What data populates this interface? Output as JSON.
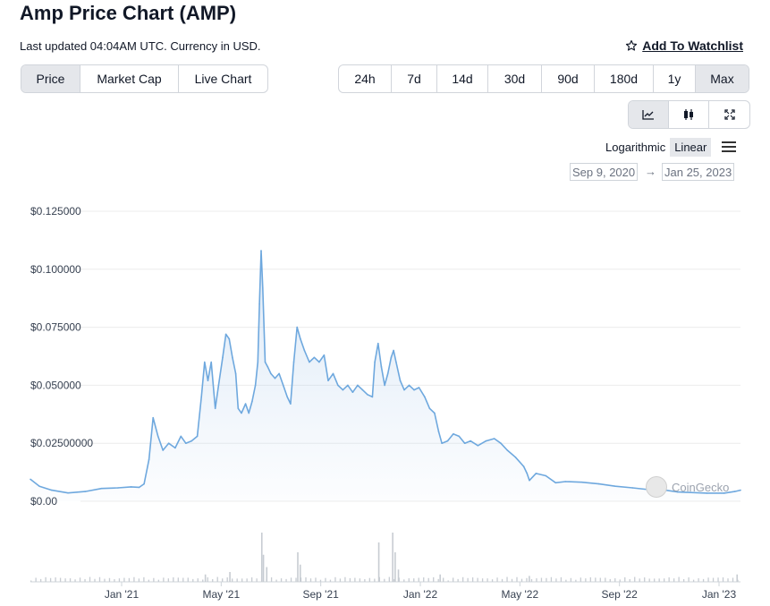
{
  "header": {
    "title": "Amp Price Chart (AMP)",
    "updated": "Last updated 04:04AM UTC. Currency in USD.",
    "watchlist_label": "Add To Watchlist"
  },
  "chart_tabs": [
    "Price",
    "Market Cap",
    "Live Chart"
  ],
  "time_ranges": [
    "24h",
    "7d",
    "14d",
    "30d",
    "90d",
    "180d",
    "1y",
    "Max"
  ],
  "tools": [
    "line-chart-icon",
    "candlestick-icon",
    "fullscreen-icon"
  ],
  "scale": {
    "log_label": "Logarithmic",
    "linear_label": "Linear"
  },
  "date_range": {
    "from": "Sep 9, 2020",
    "to": "Jan 25, 2023"
  },
  "watermark": "CoinGecko",
  "colors": {
    "line": "#6ea8de",
    "volume": "#c7ccd2",
    "grid": "#ececec"
  },
  "chart_data": {
    "type": "area",
    "title": "",
    "y_tick_labels": [
      "$0.00",
      "$0.02500000",
      "$0.050000",
      "$0.075000",
      "$0.100000",
      "$0.125000"
    ],
    "x_tick_labels": [
      "Jan '21",
      "May '21",
      "Sep '21",
      "Jan '22",
      "May '22",
      "Sep '22",
      "Jan '23"
    ],
    "ylim": [
      0,
      0.125
    ],
    "grid": true,
    "series": [
      {
        "values": [
          [
            "2020-09-09",
            0.0095
          ],
          [
            "2020-09-20",
            0.0065
          ],
          [
            "2020-10-05",
            0.0048
          ],
          [
            "2020-10-25",
            0.0036
          ],
          [
            "2020-11-15",
            0.0042
          ],
          [
            "2020-12-05",
            0.0055
          ],
          [
            "2020-12-25",
            0.0058
          ],
          [
            "2021-01-10",
            0.0062
          ],
          [
            "2021-01-20",
            0.006
          ],
          [
            "2021-01-26",
            0.0075
          ],
          [
            "2021-02-01",
            0.018
          ],
          [
            "2021-02-06",
            0.036
          ],
          [
            "2021-02-12",
            0.028
          ],
          [
            "2021-02-18",
            0.022
          ],
          [
            "2021-02-25",
            0.025
          ],
          [
            "2021-03-05",
            0.023
          ],
          [
            "2021-03-12",
            0.028
          ],
          [
            "2021-03-18",
            0.025
          ],
          [
            "2021-03-25",
            0.026
          ],
          [
            "2021-04-01",
            0.028
          ],
          [
            "2021-04-06",
            0.045
          ],
          [
            "2021-04-10",
            0.06
          ],
          [
            "2021-04-14",
            0.052
          ],
          [
            "2021-04-18",
            0.06
          ],
          [
            "2021-04-23",
            0.04
          ],
          [
            "2021-04-27",
            0.05
          ],
          [
            "2021-05-02",
            0.062
          ],
          [
            "2021-05-06",
            0.072
          ],
          [
            "2021-05-10",
            0.07
          ],
          [
            "2021-05-14",
            0.062
          ],
          [
            "2021-05-18",
            0.055
          ],
          [
            "2021-05-21",
            0.04
          ],
          [
            "2021-05-25",
            0.038
          ],
          [
            "2021-05-30",
            0.042
          ],
          [
            "2021-06-03",
            0.038
          ],
          [
            "2021-06-07",
            0.043
          ],
          [
            "2021-06-11",
            0.05
          ],
          [
            "2021-06-14",
            0.06
          ],
          [
            "2021-06-16",
            0.085
          ],
          [
            "2021-06-18",
            0.108
          ],
          [
            "2021-06-20",
            0.092
          ],
          [
            "2021-06-23",
            0.06
          ],
          [
            "2021-06-26",
            0.058
          ],
          [
            "2021-06-30",
            0.055
          ],
          [
            "2021-07-05",
            0.053
          ],
          [
            "2021-07-10",
            0.055
          ],
          [
            "2021-07-15",
            0.05
          ],
          [
            "2021-07-20",
            0.045
          ],
          [
            "2021-07-24",
            0.042
          ],
          [
            "2021-07-28",
            0.06
          ],
          [
            "2021-08-01",
            0.075
          ],
          [
            "2021-08-05",
            0.07
          ],
          [
            "2021-08-10",
            0.065
          ],
          [
            "2021-08-16",
            0.06
          ],
          [
            "2021-08-22",
            0.062
          ],
          [
            "2021-08-28",
            0.06
          ],
          [
            "2021-09-03",
            0.063
          ],
          [
            "2021-09-08",
            0.052
          ],
          [
            "2021-09-14",
            0.055
          ],
          [
            "2021-09-20",
            0.05
          ],
          [
            "2021-09-26",
            0.048
          ],
          [
            "2021-10-02",
            0.05
          ],
          [
            "2021-10-08",
            0.047
          ],
          [
            "2021-10-14",
            0.05
          ],
          [
            "2021-10-20",
            0.048
          ],
          [
            "2021-10-26",
            0.046
          ],
          [
            "2021-11-01",
            0.045
          ],
          [
            "2021-11-04",
            0.06
          ],
          [
            "2021-11-08",
            0.068
          ],
          [
            "2021-11-12",
            0.058
          ],
          [
            "2021-11-16",
            0.05
          ],
          [
            "2021-11-20",
            0.055
          ],
          [
            "2021-11-24",
            0.062
          ],
          [
            "2021-11-27",
            0.065
          ],
          [
            "2021-11-30",
            0.06
          ],
          [
            "2021-12-05",
            0.052
          ],
          [
            "2021-12-10",
            0.048
          ],
          [
            "2021-12-16",
            0.05
          ],
          [
            "2021-12-22",
            0.048
          ],
          [
            "2021-12-28",
            0.049
          ],
          [
            "2022-01-04",
            0.045
          ],
          [
            "2022-01-10",
            0.04
          ],
          [
            "2022-01-16",
            0.038
          ],
          [
            "2022-01-21",
            0.03
          ],
          [
            "2022-01-25",
            0.025
          ],
          [
            "2022-02-01",
            0.026
          ],
          [
            "2022-02-08",
            0.029
          ],
          [
            "2022-02-15",
            0.028
          ],
          [
            "2022-02-22",
            0.025
          ],
          [
            "2022-03-01",
            0.026
          ],
          [
            "2022-03-10",
            0.024
          ],
          [
            "2022-03-20",
            0.026
          ],
          [
            "2022-03-30",
            0.027
          ],
          [
            "2022-04-07",
            0.025
          ],
          [
            "2022-04-15",
            0.022
          ],
          [
            "2022-04-25",
            0.019
          ],
          [
            "2022-05-05",
            0.015
          ],
          [
            "2022-05-09",
            0.012
          ],
          [
            "2022-05-12",
            0.009
          ],
          [
            "2022-05-20",
            0.012
          ],
          [
            "2022-06-01",
            0.011
          ],
          [
            "2022-06-13",
            0.008
          ],
          [
            "2022-06-25",
            0.0085
          ],
          [
            "2022-07-15",
            0.0082
          ],
          [
            "2022-08-05",
            0.0075
          ],
          [
            "2022-08-25",
            0.0065
          ],
          [
            "2022-09-15",
            0.0058
          ],
          [
            "2022-10-05",
            0.005
          ],
          [
            "2022-10-25",
            0.0048
          ],
          [
            "2022-11-09",
            0.004
          ],
          [
            "2022-11-25",
            0.0038
          ],
          [
            "2022-12-15",
            0.0035
          ],
          [
            "2023-01-05",
            0.0035
          ],
          [
            "2023-01-18",
            0.0042
          ],
          [
            "2023-01-25",
            0.0048
          ]
        ]
      }
    ],
    "volume_spikes": [
      [
        "2021-06-18",
        1.0
      ],
      [
        "2021-06-20",
        0.55
      ],
      [
        "2021-06-24",
        0.3
      ],
      [
        "2021-08-01",
        0.6
      ],
      [
        "2021-08-04",
        0.35
      ],
      [
        "2021-11-08",
        0.8
      ],
      [
        "2021-11-25",
        1.0
      ],
      [
        "2021-11-28",
        0.6
      ],
      [
        "2021-12-02",
        0.25
      ],
      [
        "2021-05-10",
        0.2
      ],
      [
        "2021-04-10",
        0.15
      ],
      [
        "2022-01-22",
        0.15
      ],
      [
        "2022-05-11",
        0.12
      ],
      [
        "2023-01-20",
        0.15
      ]
    ]
  }
}
